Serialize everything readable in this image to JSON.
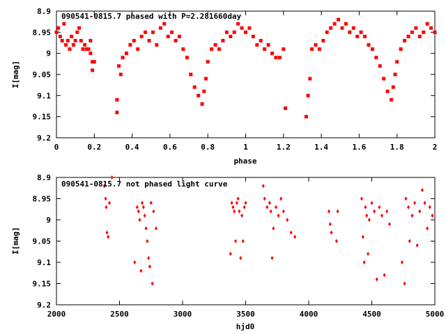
{
  "chart_data": [
    {
      "type": "scatter",
      "title": "090541-0815.7 phased with P=2.281660day",
      "xlabel": "phase",
      "ylabel": "I[mag]",
      "xlim": [
        0,
        2
      ],
      "ylim": [
        8.9,
        9.2
      ],
      "y_inverted": true,
      "grid": false,
      "marker": "square",
      "color": "#ff0000",
      "x_ticks": [
        "0",
        "0.2",
        "0.4",
        "0.6",
        "0.8",
        "1",
        "1.2",
        "1.4",
        "1.6",
        "1.8",
        "2"
      ],
      "y_ticks": [
        "8.9",
        "8.95",
        "9",
        "9.05",
        "9.1",
        "9.15",
        "9.2"
      ],
      "points": [
        [
          0.0,
          8.95
        ],
        [
          0.01,
          8.94
        ],
        [
          0.02,
          8.96
        ],
        [
          0.03,
          8.97
        ],
        [
          0.04,
          8.93
        ],
        [
          0.05,
          8.98
        ],
        [
          0.06,
          8.97
        ],
        [
          0.07,
          8.99
        ],
        [
          0.08,
          8.96
        ],
        [
          0.09,
          8.98
        ],
        [
          0.1,
          8.97
        ],
        [
          0.11,
          8.95
        ],
        [
          0.12,
          8.94
        ],
        [
          0.13,
          8.97
        ],
        [
          0.14,
          8.99
        ],
        [
          0.15,
          8.98
        ],
        [
          0.16,
          8.99
        ],
        [
          0.17,
          8.99
        ],
        [
          0.18,
          9.0
        ],
        [
          0.18,
          8.97
        ],
        [
          0.19,
          9.02
        ],
        [
          0.19,
          9.04
        ],
        [
          0.2,
          9.02
        ],
        [
          0.32,
          9.14
        ],
        [
          0.32,
          9.11
        ],
        [
          0.33,
          9.03
        ],
        [
          0.34,
          9.05
        ],
        [
          0.35,
          9.01
        ],
        [
          0.37,
          9.0
        ],
        [
          0.39,
          8.98
        ],
        [
          0.41,
          8.97
        ],
        [
          0.43,
          8.99
        ],
        [
          0.45,
          8.96
        ],
        [
          0.47,
          8.95
        ],
        [
          0.49,
          8.97
        ],
        [
          0.51,
          8.95
        ],
        [
          0.53,
          8.98
        ],
        [
          0.55,
          8.94
        ],
        [
          0.57,
          8.93
        ],
        [
          0.59,
          8.96
        ],
        [
          0.61,
          8.95
        ],
        [
          0.63,
          8.97
        ],
        [
          0.65,
          8.96
        ],
        [
          0.67,
          8.99
        ],
        [
          0.69,
          9.01
        ],
        [
          0.71,
          9.05
        ],
        [
          0.73,
          9.08
        ],
        [
          0.75,
          9.1
        ],
        [
          0.77,
          9.12
        ],
        [
          0.78,
          9.09
        ],
        [
          0.79,
          9.06
        ],
        [
          0.8,
          9.02
        ],
        [
          0.82,
          8.99
        ],
        [
          0.84,
          8.98
        ],
        [
          0.86,
          8.99
        ],
        [
          0.88,
          8.97
        ],
        [
          0.9,
          8.95
        ],
        [
          0.92,
          8.96
        ],
        [
          0.94,
          8.95
        ],
        [
          0.96,
          8.93
        ],
        [
          0.98,
          8.94
        ],
        [
          1.0,
          8.95
        ],
        [
          1.02,
          8.94
        ],
        [
          1.04,
          8.96
        ],
        [
          1.06,
          8.98
        ],
        [
          1.08,
          8.97
        ],
        [
          1.1,
          8.99
        ],
        [
          1.12,
          8.98
        ],
        [
          1.14,
          9.0
        ],
        [
          1.16,
          9.01
        ],
        [
          1.18,
          9.01
        ],
        [
          1.2,
          8.99
        ],
        [
          1.21,
          9.13
        ],
        [
          1.32,
          9.15
        ],
        [
          1.33,
          9.1
        ],
        [
          1.34,
          9.06
        ],
        [
          1.35,
          8.99
        ],
        [
          1.37,
          8.98
        ],
        [
          1.39,
          8.99
        ],
        [
          1.41,
          8.97
        ],
        [
          1.43,
          8.95
        ],
        [
          1.45,
          8.94
        ],
        [
          1.47,
          8.93
        ],
        [
          1.49,
          8.92
        ],
        [
          1.51,
          8.94
        ],
        [
          1.53,
          8.93
        ],
        [
          1.55,
          8.95
        ],
        [
          1.57,
          8.94
        ],
        [
          1.59,
          8.96
        ],
        [
          1.61,
          8.95
        ],
        [
          1.63,
          8.96
        ],
        [
          1.65,
          8.98
        ],
        [
          1.67,
          8.99
        ],
        [
          1.69,
          9.01
        ],
        [
          1.71,
          9.03
        ],
        [
          1.73,
          9.06
        ],
        [
          1.75,
          9.09
        ],
        [
          1.77,
          9.11
        ],
        [
          1.78,
          9.08
        ],
        [
          1.79,
          9.05
        ],
        [
          1.8,
          9.02
        ],
        [
          1.82,
          8.99
        ],
        [
          1.84,
          8.97
        ],
        [
          1.86,
          8.96
        ],
        [
          1.88,
          8.95
        ],
        [
          1.9,
          8.94
        ],
        [
          1.92,
          8.96
        ],
        [
          1.94,
          8.95
        ],
        [
          1.96,
          8.93
        ],
        [
          1.98,
          8.94
        ],
        [
          2.0,
          8.95
        ]
      ]
    },
    {
      "type": "scatter",
      "title": "090541-0815.7 not phased light curve",
      "xlabel": "hjd0",
      "ylabel": "I[mag]",
      "xlim": [
        2000,
        5000
      ],
      "ylim": [
        8.9,
        9.2
      ],
      "y_inverted": true,
      "grid": false,
      "marker": "diamond",
      "color": "#ff0000",
      "x_ticks": [
        "2000",
        "2500",
        "3000",
        "3500",
        "4000",
        "4500",
        "5000"
      ],
      "y_ticks": [
        "8.9",
        "8.95",
        "9",
        "9.05",
        "9.1",
        "9.15",
        "9.2"
      ],
      "points": [
        [
          2380,
          8.92
        ],
        [
          2390,
          8.95
        ],
        [
          2395,
          8.97
        ],
        [
          2400,
          9.03
        ],
        [
          2410,
          9.04
        ],
        [
          2420,
          8.96
        ],
        [
          2440,
          8.9
        ],
        [
          2620,
          9.1
        ],
        [
          2640,
          8.97
        ],
        [
          2650,
          8.98
        ],
        [
          2660,
          9.0
        ],
        [
          2670,
          9.12
        ],
        [
          2680,
          8.96
        ],
        [
          2690,
          8.97
        ],
        [
          2700,
          8.99
        ],
        [
          2710,
          9.02
        ],
        [
          2720,
          9.05
        ],
        [
          2730,
          9.09
        ],
        [
          2740,
          9.11
        ],
        [
          2750,
          8.96
        ],
        [
          2760,
          9.15
        ],
        [
          2770,
          8.98
        ],
        [
          2790,
          9.02
        ],
        [
          3380,
          9.08
        ],
        [
          3390,
          8.96
        ],
        [
          3400,
          8.97
        ],
        [
          3410,
          8.98
        ],
        [
          3420,
          9.05
        ],
        [
          3430,
          8.96
        ],
        [
          3440,
          8.95
        ],
        [
          3450,
          8.98
        ],
        [
          3460,
          9.09
        ],
        [
          3470,
          8.99
        ],
        [
          3480,
          9.05
        ],
        [
          3490,
          8.97
        ],
        [
          3500,
          8.96
        ],
        [
          3640,
          8.92
        ],
        [
          3650,
          8.95
        ],
        [
          3670,
          8.97
        ],
        [
          3690,
          8.96
        ],
        [
          3700,
          8.98
        ],
        [
          3710,
          9.09
        ],
        [
          3720,
          9.02
        ],
        [
          3740,
          8.97
        ],
        [
          3760,
          8.99
        ],
        [
          3780,
          8.95
        ],
        [
          3800,
          8.98
        ],
        [
          3830,
          9.0
        ],
        [
          3860,
          9.03
        ],
        [
          3890,
          9.04
        ],
        [
          4160,
          8.98
        ],
        [
          4170,
          9.01
        ],
        [
          4180,
          9.03
        ],
        [
          4220,
          9.05
        ],
        [
          4230,
          8.98
        ],
        [
          4420,
          8.95
        ],
        [
          4430,
          9.04
        ],
        [
          4440,
          9.1
        ],
        [
          4450,
          8.97
        ],
        [
          4460,
          8.99
        ],
        [
          4470,
          9.08
        ],
        [
          4480,
          9.0
        ],
        [
          4500,
          8.96
        ],
        [
          4520,
          8.98
        ],
        [
          4540,
          9.14
        ],
        [
          4560,
          8.97
        ],
        [
          4580,
          8.99
        ],
        [
          4600,
          9.13
        ],
        [
          4620,
          8.98
        ],
        [
          4640,
          9.01
        ],
        [
          4740,
          9.1
        ],
        [
          4760,
          9.15
        ],
        [
          4770,
          8.95
        ],
        [
          4790,
          8.97
        ],
        [
          4800,
          9.05
        ],
        [
          4820,
          8.99
        ],
        [
          4840,
          8.96
        ],
        [
          4860,
          9.06
        ],
        [
          4880,
          8.98
        ],
        [
          4900,
          8.93
        ],
        [
          4920,
          8.96
        ],
        [
          4940,
          9.02
        ],
        [
          4960,
          8.97
        ],
        [
          4980,
          8.99
        ]
      ]
    }
  ]
}
